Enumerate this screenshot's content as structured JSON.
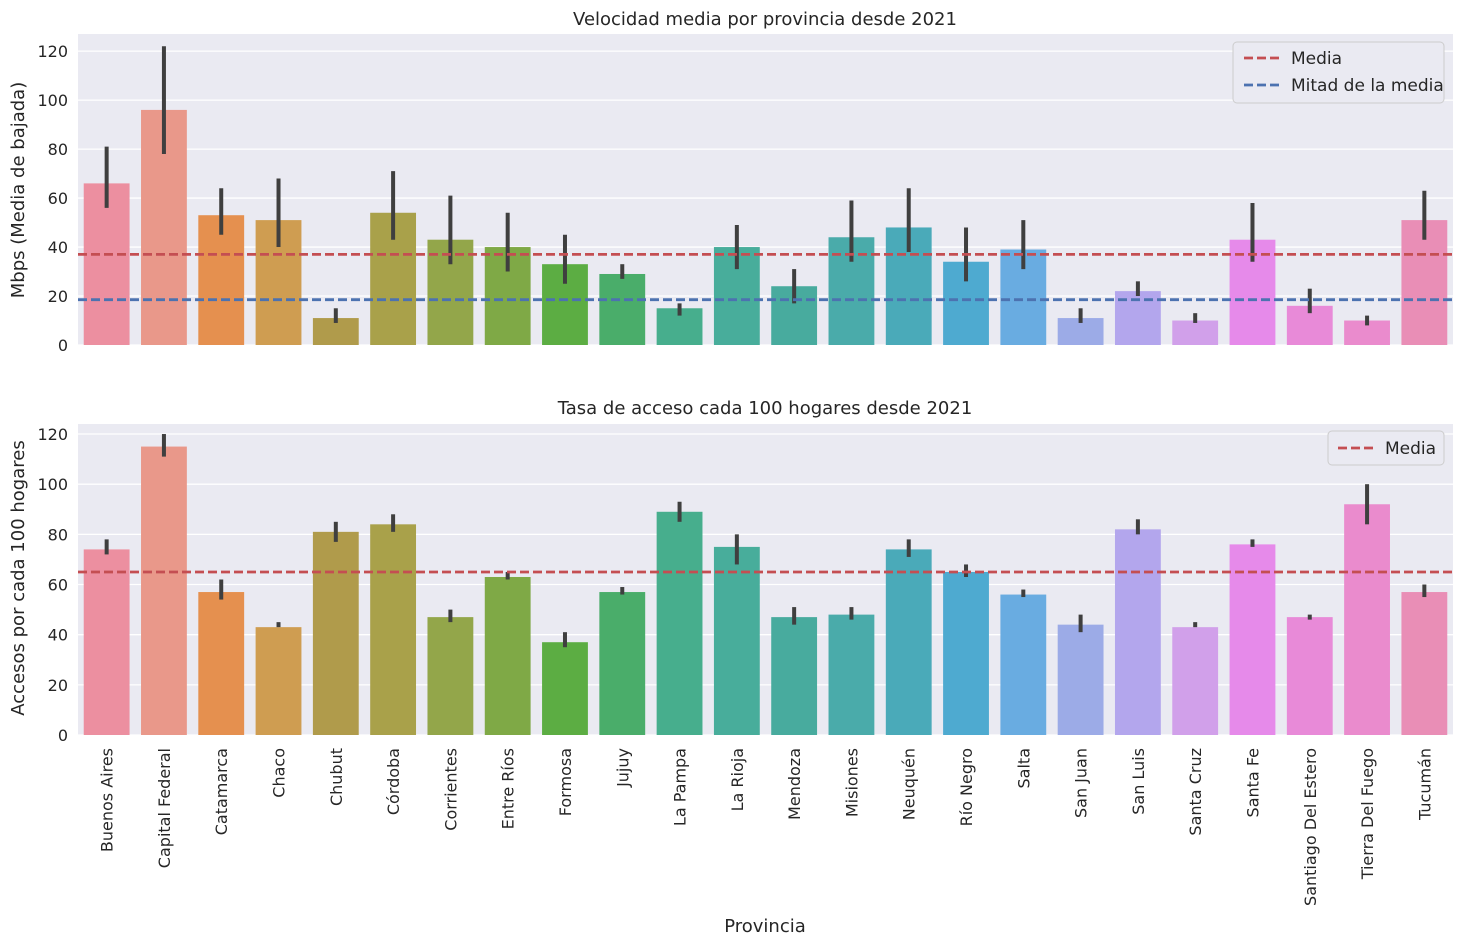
{
  "chart_data": [
    {
      "type": "bar",
      "title": "Velocidad media por provincia desde 2021",
      "xlabel": "",
      "ylabel": "Mbps (Media de bajada)",
      "ylim": [
        0,
        127
      ],
      "yticks": [
        0,
        20,
        40,
        60,
        80,
        100,
        120
      ],
      "grid": true,
      "legend_position": "top-right",
      "categories": [
        "Buenos Aires",
        "Capital Federal",
        "Catamarca",
        "Chaco",
        "Chubut",
        "Córdoba",
        "Corrientes",
        "Entre Ríos",
        "Formosa",
        "Jujuy",
        "La Pampa",
        "La Rioja",
        "Mendoza",
        "Misiones",
        "Neuquén",
        "Río Negro",
        "Salta",
        "San Juan",
        "San Luis",
        "Santa Cruz",
        "Santa Fe",
        "Santiago Del Estero",
        "Tierra Del Fuego",
        "Tucumán"
      ],
      "values": [
        66,
        96,
        53,
        51,
        11,
        54,
        43,
        40,
        33,
        29,
        15,
        40,
        24,
        44,
        48,
        34,
        39,
        11,
        22,
        10,
        43,
        16,
        10,
        51
      ],
      "error_low": [
        56,
        78,
        45,
        40,
        9,
        43,
        33,
        30,
        25,
        27,
        12,
        31,
        17,
        34,
        38,
        26,
        31,
        9,
        20,
        9,
        34,
        13,
        8,
        43
      ],
      "error_high": [
        81,
        122,
        64,
        68,
        15,
        71,
        61,
        54,
        45,
        33,
        17,
        49,
        31,
        59,
        64,
        48,
        51,
        15,
        26,
        13,
        58,
        23,
        12,
        63
      ],
      "reference_lines": [
        {
          "name": "Media",
          "value": 37,
          "color": "#c44e52"
        },
        {
          "name": "Mitad de la media",
          "value": 18.5,
          "color": "#4c72b0"
        }
      ],
      "legend": [
        "Media",
        "Mitad de la media"
      ]
    },
    {
      "type": "bar",
      "title": "Tasa de acceso cada 100 hogares desde 2021",
      "xlabel": "Provincia",
      "ylabel": "Accesos por cada 100 hogares",
      "ylim": [
        0,
        124
      ],
      "yticks": [
        0,
        20,
        40,
        60,
        80,
        100,
        120
      ],
      "grid": true,
      "legend_position": "top-right",
      "categories": [
        "Buenos Aires",
        "Capital Federal",
        "Catamarca",
        "Chaco",
        "Chubut",
        "Córdoba",
        "Corrientes",
        "Entre Ríos",
        "Formosa",
        "Jujuy",
        "La Pampa",
        "La Rioja",
        "Mendoza",
        "Misiones",
        "Neuquén",
        "Río Negro",
        "Salta",
        "San Juan",
        "San Luis",
        "Santa Cruz",
        "Santa Fe",
        "Santiago Del Estero",
        "Tierra Del Fuego",
        "Tucumán"
      ],
      "values": [
        74,
        115,
        57,
        43,
        81,
        84,
        47,
        63,
        37,
        57,
        89,
        75,
        47,
        48,
        74,
        65,
        56,
        44,
        82,
        43,
        76,
        47,
        92,
        57
      ],
      "error_low": [
        72,
        111,
        54,
        43,
        77,
        81,
        45,
        62,
        35,
        56,
        85,
        68,
        44,
        46,
        71,
        63,
        55,
        41,
        80,
        43,
        75,
        46,
        84,
        55
      ],
      "error_high": [
        78,
        120,
        62,
        45,
        85,
        88,
        50,
        65,
        41,
        59,
        93,
        80,
        51,
        51,
        78,
        68,
        58,
        48,
        86,
        45,
        78,
        48,
        100,
        60
      ],
      "reference_lines": [
        {
          "name": "Media",
          "value": 65,
          "color": "#c44e52"
        }
      ],
      "legend": [
        "Media"
      ]
    }
  ],
  "colors": [
    "#ec8fa0",
    "#e9988a",
    "#e5904f",
    "#cf9d51",
    "#b09b4b",
    "#a9a14a",
    "#93a64a",
    "#7fa946",
    "#5cad43",
    "#4aad6a",
    "#47ae8d",
    "#48ad9b",
    "#48ab9e",
    "#4aabaa",
    "#4aaab9",
    "#4eaad0",
    "#69ace1",
    "#9cabe7",
    "#b3a6ed",
    "#d1a0ea",
    "#e68aea",
    "#e88ad8",
    "#ea8bcd",
    "#e98eb6"
  ]
}
